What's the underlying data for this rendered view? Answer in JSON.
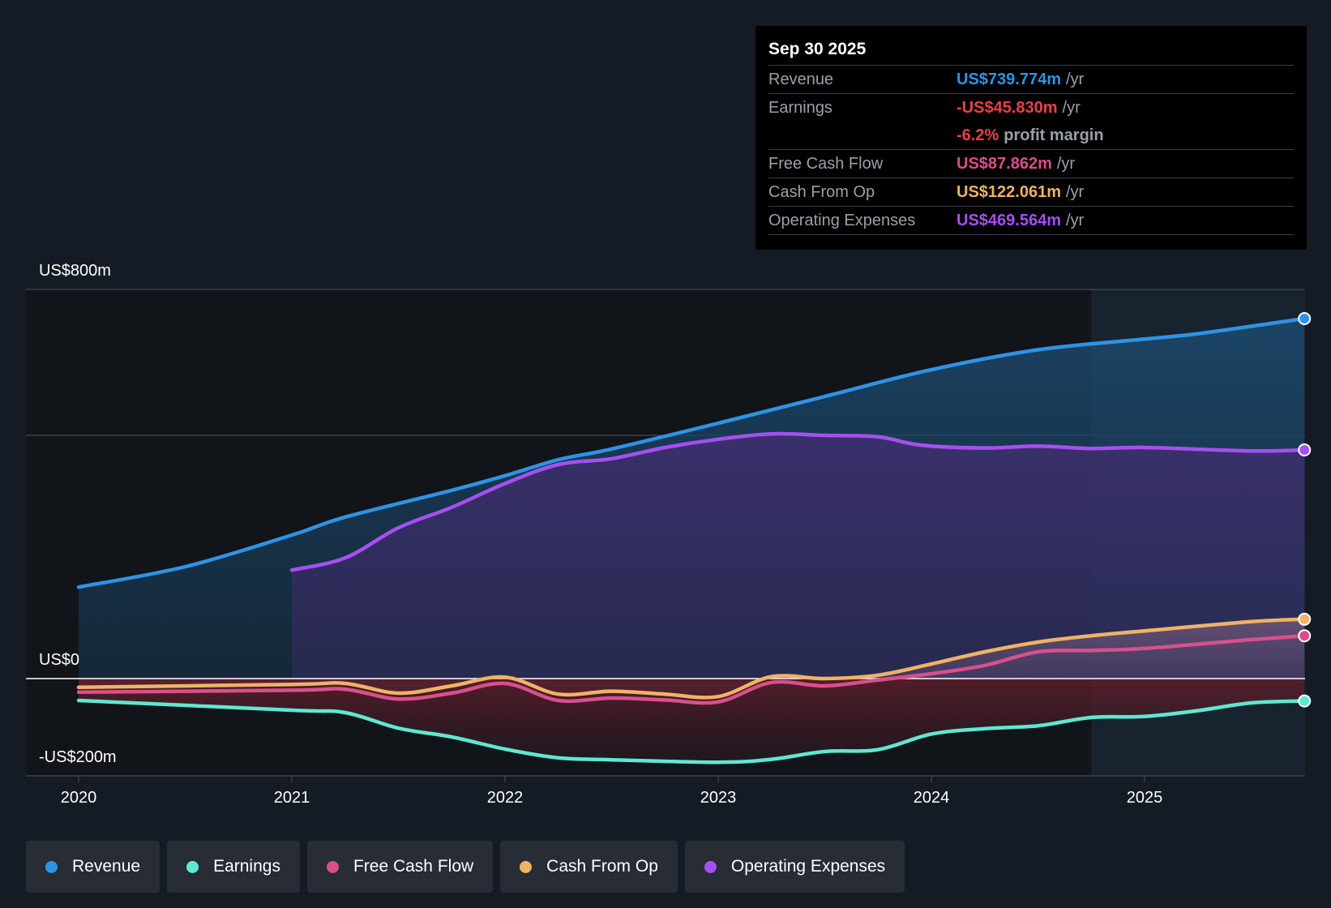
{
  "chart_data": {
    "type": "area",
    "y_labels": {
      "top": "US$800m",
      "zero": "US$0",
      "bottom": "-US$200m"
    },
    "ylim": [
      -200,
      800
    ],
    "xlim": [
      2020,
      2025.75
    ],
    "x_ticks": [
      "2020",
      "2021",
      "2022",
      "2023",
      "2024",
      "2025"
    ],
    "forecast_shade_start": 2024.75,
    "series": [
      {
        "name": "Revenue",
        "color": "#2e93e6",
        "x": [
          2020,
          2020.5,
          2021,
          2021.25,
          2021.75,
          2022,
          2022.25,
          2022.5,
          2023,
          2023.5,
          2024,
          2024.5,
          2025,
          2025.25,
          2025.75
        ],
        "y": [
          188,
          230,
          295,
          332,
          387,
          417,
          450,
          472,
          525,
          580,
          635,
          676,
          698,
          709,
          740
        ]
      },
      {
        "name": "Operating Expenses",
        "color": "#a64ff0",
        "x": [
          2021,
          2021.25,
          2021.5,
          2021.75,
          2022,
          2022.25,
          2022.5,
          2022.75,
          2023,
          2023.25,
          2023.5,
          2023.75,
          2023.95,
          2024.25,
          2024.5,
          2024.75,
          2025,
          2025.5,
          2025.75
        ],
        "y": [
          223,
          248,
          310,
          352,
          401,
          440,
          452,
          475,
          492,
          503,
          500,
          497,
          480,
          474,
          478,
          473,
          475,
          468,
          470
        ]
      },
      {
        "name": "Cash From Op",
        "color": "#f0b266",
        "x": [
          2020,
          2021,
          2021.25,
          2021.5,
          2021.75,
          2022,
          2022.25,
          2022.5,
          2022.75,
          2023,
          2023.25,
          2023.5,
          2023.75,
          2024,
          2024.25,
          2024.5,
          2024.75,
          2025,
          2025.5,
          2025.75
        ],
        "y": [
          -18,
          -12,
          -10,
          -30,
          -15,
          3,
          -32,
          -26,
          -32,
          -37,
          4,
          0,
          7,
          30,
          55,
          75,
          88,
          98,
          117,
          122
        ]
      },
      {
        "name": "Free Cash Flow",
        "color": "#d94f8c",
        "x": [
          2020,
          2021,
          2021.25,
          2021.5,
          2021.75,
          2022,
          2022.25,
          2022.5,
          2022.75,
          2023,
          2023.25,
          2023.5,
          2023.75,
          2024,
          2024.25,
          2024.5,
          2024.75,
          2025,
          2025.5,
          2025.75
        ],
        "y": [
          -28,
          -24,
          -22,
          -42,
          -30,
          -10,
          -45,
          -40,
          -44,
          -48,
          -8,
          -15,
          -3,
          10,
          27,
          55,
          58,
          62,
          80,
          88
        ]
      },
      {
        "name": "Earnings",
        "color": "#5ee8d1",
        "x": [
          2020,
          2021,
          2021.25,
          2021.5,
          2021.75,
          2022,
          2022.25,
          2022.5,
          2023,
          2023.25,
          2023.5,
          2023.75,
          2024,
          2024.25,
          2024.5,
          2024.75,
          2025,
          2025.25,
          2025.5,
          2025.75
        ],
        "y": [
          -45,
          -65,
          -70,
          -102,
          -120,
          -145,
          -163,
          -167,
          -172,
          -166,
          -150,
          -146,
          -114,
          -103,
          -97,
          -80,
          -78,
          -66,
          -50,
          -46
        ]
      }
    ]
  },
  "tooltip": {
    "date": "Sep 30 2025",
    "rows": [
      {
        "label": "Revenue",
        "value": "US$739.774m",
        "unit": "/yr",
        "color": "#2e93e6"
      },
      {
        "label": "Earnings",
        "value": "-US$45.830m",
        "unit": "/yr",
        "color": "#e8414a"
      },
      {
        "label": "",
        "value": "-6.2%",
        "unit": "profit margin",
        "color": "#e8414a"
      },
      {
        "label": "Free Cash Flow",
        "value": "US$87.862m",
        "unit": "/yr",
        "color": "#d94f8c"
      },
      {
        "label": "Cash From Op",
        "value": "US$122.061m",
        "unit": "/yr",
        "color": "#f0b266"
      },
      {
        "label": "Operating Expenses",
        "value": "US$469.564m",
        "unit": "/yr",
        "color": "#a64ff0"
      }
    ]
  },
  "legend": [
    {
      "label": "Revenue",
      "color": "#2e93e6"
    },
    {
      "label": "Earnings",
      "color": "#5ee8d1"
    },
    {
      "label": "Free Cash Flow",
      "color": "#d94f8c"
    },
    {
      "label": "Cash From Op",
      "color": "#f0b266"
    },
    {
      "label": "Operating Expenses",
      "color": "#a64ff0"
    }
  ]
}
